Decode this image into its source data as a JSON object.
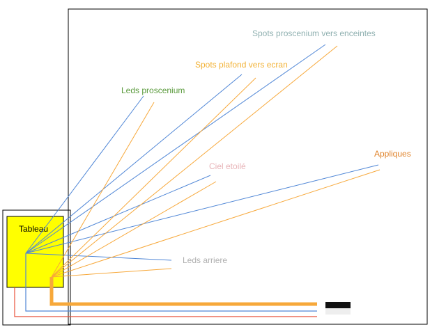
{
  "tableau": {
    "label": "Tableau",
    "fill": "#ffff00"
  },
  "circuits": [
    {
      "label": "Leds proscenium",
      "color": "#5a9a3c"
    },
    {
      "label": "Spots plafond vers ecran",
      "color": "#f2b134"
    },
    {
      "label": "Spots proscenium vers enceintes",
      "color": "#8fb0b0"
    },
    {
      "label": "Appliques",
      "color": "#e0832a"
    },
    {
      "label": "Ciel etoilé",
      "color": "#e8b4b8"
    },
    {
      "label": "Leds arriere",
      "color": "#b0b0b0"
    }
  ],
  "wire_colors": {
    "blue": "#4f86d6",
    "orange": "#f7a83a",
    "red": "#e8503a"
  }
}
